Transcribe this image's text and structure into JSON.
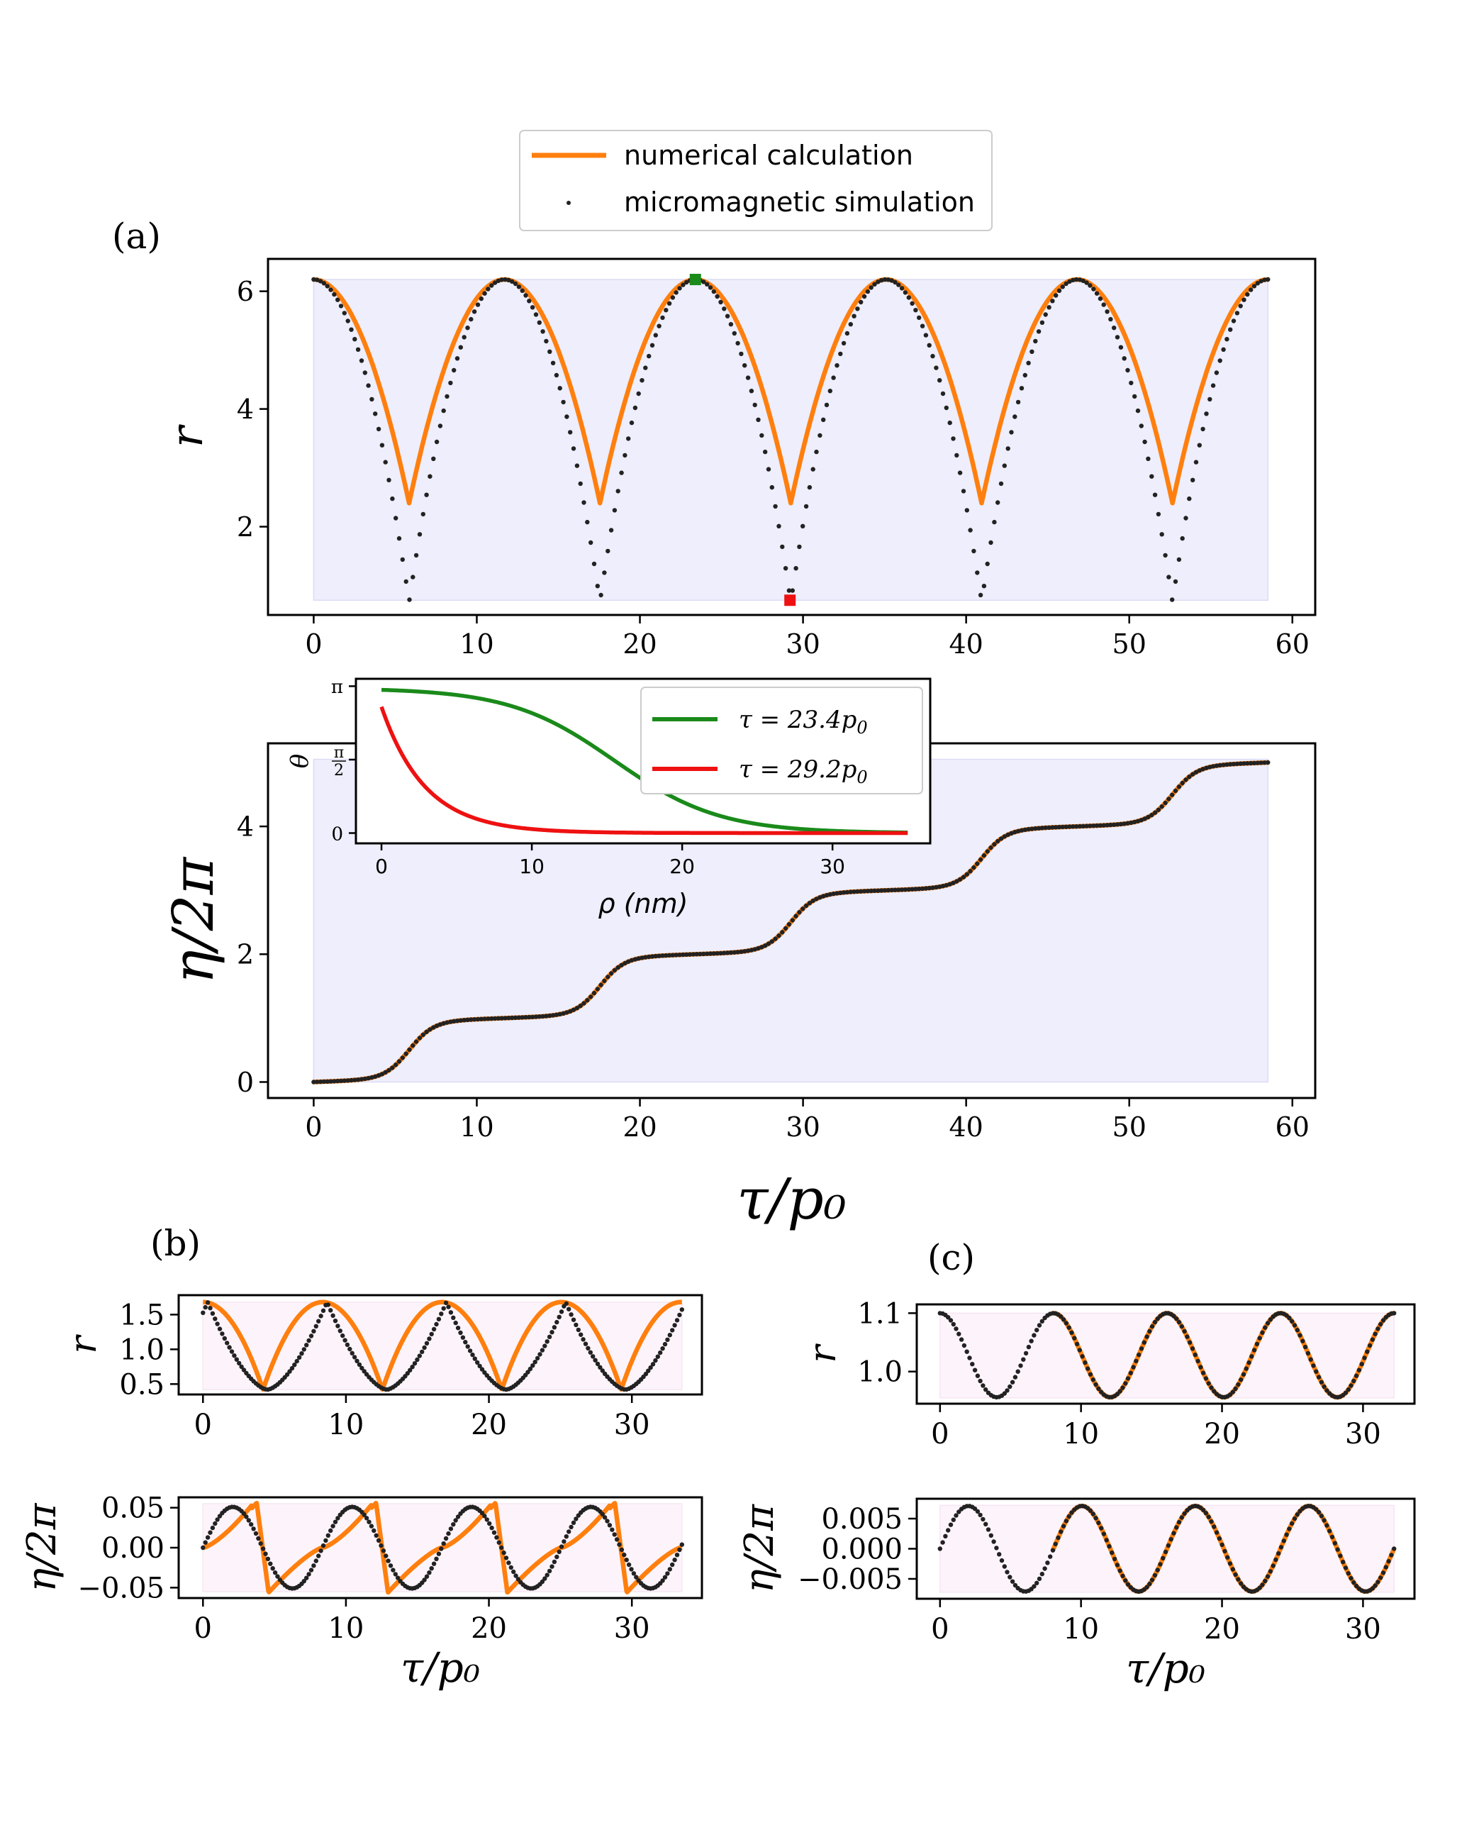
{
  "colors": {
    "numerical": "#ff7f0e",
    "simulation": "#222222",
    "green": "#1a8a1a",
    "red": "#ee1111",
    "shadeA": "#eeeefc",
    "shadeBC": "#fdf4fb"
  },
  "legend": {
    "numerical": "numerical calculation",
    "simulation": "micromagnetic simulation"
  },
  "panel_labels": {
    "a": "(a)",
    "b": "(b)",
    "c": "(c)"
  },
  "chart_data": [
    {
      "id": "a_top",
      "type": "line",
      "panel": "(a)",
      "ylabel": "r",
      "xlabel": "",
      "xlim": [
        -2.8,
        61.4
      ],
      "ylim": [
        0.5,
        6.55
      ],
      "xticks": [
        0,
        10,
        20,
        30,
        40,
        50,
        60
      ],
      "yticks": [
        2,
        4,
        6
      ],
      "xtick_labels": [
        "0",
        "10",
        "20",
        "30",
        "40",
        "50",
        "60"
      ],
      "ytick_labels": [
        "2",
        "4",
        "6"
      ],
      "shaded_region": {
        "x": [
          0,
          58.5
        ],
        "y": [
          0.75,
          6.2
        ]
      },
      "series": [
        {
          "name": "numerical calculation",
          "model": "cusp",
          "period": 11.7,
          "phase": 5.85,
          "max": 6.2,
          "min": 2.4,
          "x_range": [
            0,
            58.5
          ]
        },
        {
          "name": "micromagnetic simulation",
          "model": "cusp",
          "period": 11.7,
          "phase": 5.85,
          "max": 6.2,
          "min": 0.72,
          "x_range": [
            0,
            58.5
          ],
          "n_points": 280
        }
      ],
      "markers": [
        {
          "x": 23.4,
          "y": 6.2,
          "color": "green"
        },
        {
          "x": 29.2,
          "y": 0.75,
          "color": "red"
        }
      ]
    },
    {
      "id": "a_bottom",
      "type": "line",
      "panel": "(a)",
      "ylabel": "η/2π",
      "xlabel": "τ/p₀",
      "xlim": [
        -2.8,
        61.4
      ],
      "ylim": [
        -0.25,
        5.3
      ],
      "xticks": [
        0,
        10,
        20,
        30,
        40,
        50,
        60
      ],
      "yticks": [
        0,
        2,
        4
      ],
      "xtick_labels": [
        "0",
        "10",
        "20",
        "30",
        "40",
        "50",
        "60"
      ],
      "ytick_labels": [
        "0",
        "2",
        "4"
      ],
      "shaded_region": {
        "x": [
          0,
          58.5
        ],
        "y": [
          0,
          5.05
        ]
      },
      "series": [
        {
          "name": "numerical calculation",
          "model": "staircase",
          "period": 11.7,
          "phase": 5.85,
          "x_range": [
            0,
            58.5
          ],
          "end_value": 5.0
        },
        {
          "name": "micromagnetic simulation",
          "model": "staircase",
          "period": 11.7,
          "phase": 5.85,
          "x_range": [
            0,
            58.5
          ],
          "end_value": 5.0,
          "n_points": 280
        }
      ]
    },
    {
      "id": "a_inset",
      "type": "line",
      "panel": "(a) inset",
      "ylabel": "θ",
      "xlabel": "ρ (nm)",
      "xlim": [
        -1.7,
        36.5
      ],
      "ylim": [
        -0.22,
        3.3
      ],
      "xticks": [
        0,
        10,
        20,
        30
      ],
      "xtick_labels": [
        "0",
        "10",
        "20",
        "30"
      ],
      "yticks": [
        0,
        1.5708,
        3.1416
      ],
      "ytick_labels": [
        "0",
        "π/2",
        "π"
      ],
      "series": [
        {
          "name": "τ = 23.4p₀",
          "model": "domain_wall",
          "theta0": 3.1,
          "center": 15.5,
          "width": 3.5,
          "x_range": [
            0,
            35
          ]
        },
        {
          "name": "τ = 29.2p₀",
          "model": "exp_decay",
          "theta0": 2.7,
          "decay": 2.9,
          "x_range": [
            0,
            35
          ]
        }
      ],
      "legend": [
        {
          "label_main": "τ = 23.4p",
          "label_sub": "0",
          "color": "green"
        },
        {
          "label_main": "τ = 29.2p",
          "label_sub": "0",
          "color": "red"
        }
      ]
    },
    {
      "id": "b_top",
      "type": "line",
      "panel": "(b)",
      "ylabel": "r",
      "xlabel": "",
      "xlim": [
        -1.7,
        34.9
      ],
      "ylim": [
        0.35,
        1.78
      ],
      "xticks": [
        0,
        10,
        20,
        30
      ],
      "xtick_labels": [
        "0",
        "10",
        "20",
        "30"
      ],
      "yticks": [
        0.5,
        1.0,
        1.5
      ],
      "ytick_labels": [
        "0.5",
        "1.0",
        "1.5"
      ],
      "shaded_region": {
        "x": [
          0,
          33.5
        ],
        "y": [
          0.42,
          1.68
        ]
      },
      "series": [
        {
          "name": "numerical calculation",
          "model": "cusp",
          "period": 8.35,
          "phase": 4.2,
          "max": 1.68,
          "min": 0.42,
          "x_range": [
            0,
            33.5
          ]
        },
        {
          "name": "micromagnetic simulation",
          "model": "cusp_shift",
          "period": 8.35,
          "phase": 4.5,
          "max": 1.68,
          "min": 0.42,
          "x_range": [
            0,
            33.5
          ],
          "n_points": 200
        }
      ]
    },
    {
      "id": "b_bottom",
      "type": "line",
      "panel": "(b)",
      "ylabel": "η/2π",
      "xlabel": "τ/p₀",
      "xlim": [
        -1.7,
        34.9
      ],
      "ylim": [
        -0.063,
        0.063
      ],
      "xticks": [
        0,
        10,
        20,
        30
      ],
      "xtick_labels": [
        "0",
        "10",
        "20",
        "30"
      ],
      "yticks": [
        -0.05,
        0.0,
        0.05
      ],
      "ytick_labels": [
        "−0.05",
        "0.00",
        "0.05"
      ],
      "shaded_region": {
        "x": [
          0,
          33.5
        ],
        "y": [
          -0.055,
          0.055
        ]
      },
      "series": [
        {
          "name": "numerical calculation",
          "model": "sawtooth",
          "period": 8.35,
          "amplitude": 0.056,
          "x_range": [
            0,
            33.5
          ]
        },
        {
          "name": "micromagnetic simulation",
          "model": "sine",
          "period": 8.35,
          "amplitude": 0.051,
          "x_range": [
            0,
            33.5
          ],
          "n_points": 200
        }
      ]
    },
    {
      "id": "c_top",
      "type": "line",
      "panel": "(c)",
      "ylabel": "r",
      "xlabel": "",
      "xlim": [
        -1.65,
        33.65
      ],
      "ylim": [
        0.945,
        1.115
      ],
      "xticks": [
        0,
        10,
        20,
        30
      ],
      "xtick_labels": [
        "0",
        "10",
        "20",
        "30"
      ],
      "yticks": [
        1.0,
        1.1
      ],
      "ytick_labels": [
        "1.0",
        "1.1"
      ],
      "shaded_region": {
        "x": [
          0,
          32.2
        ],
        "y": [
          0.955,
          1.1
        ]
      },
      "series": [
        {
          "name": "numerical calculation",
          "model": "cosine",
          "period": 8.05,
          "center": 1.028,
          "amplitude": 0.072,
          "x_range": [
            8.0,
            32.2
          ]
        },
        {
          "name": "micromagnetic simulation",
          "model": "cosine",
          "period": 8.05,
          "center": 1.028,
          "amplitude": 0.072,
          "x_range": [
            0,
            32.2
          ],
          "n_points": 170
        }
      ]
    },
    {
      "id": "c_bottom",
      "type": "line",
      "panel": "(c)",
      "ylabel": "η/2π",
      "xlabel": "τ/p₀",
      "xlim": [
        -1.65,
        33.65
      ],
      "ylim": [
        -0.0083,
        0.0083
      ],
      "xticks": [
        0,
        10,
        20,
        30
      ],
      "xtick_labels": [
        "0",
        "10",
        "20",
        "30"
      ],
      "yticks": [
        -0.005,
        0.0,
        0.005
      ],
      "ytick_labels": [
        "−0.005",
        "0.000",
        "0.005"
      ],
      "shaded_region": {
        "x": [
          0,
          32.2
        ],
        "y": [
          -0.0072,
          0.0072
        ]
      },
      "series": [
        {
          "name": "numerical calculation",
          "model": "sine",
          "period": 8.05,
          "amplitude": 0.0071,
          "x_range": [
            8.0,
            32.2
          ]
        },
        {
          "name": "micromagnetic simulation",
          "model": "sine",
          "period": 8.05,
          "amplitude": 0.0071,
          "x_range": [
            0,
            32.2
          ],
          "n_points": 170
        }
      ]
    }
  ]
}
